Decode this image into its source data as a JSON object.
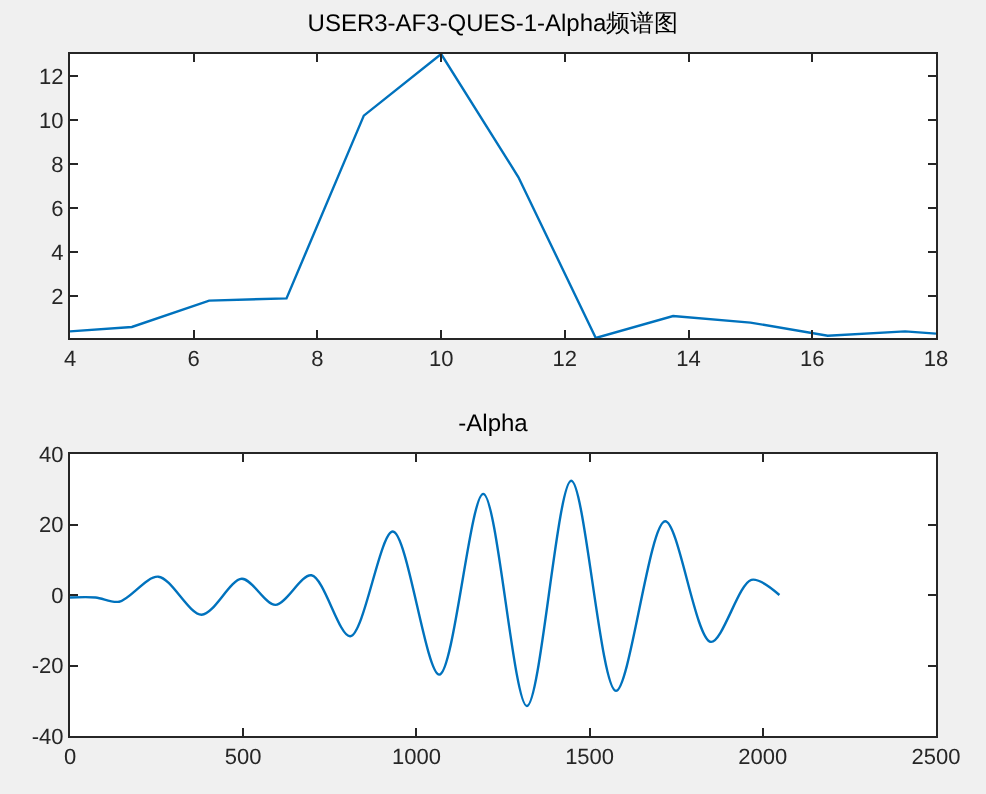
{
  "chart_data": [
    {
      "type": "line",
      "title": "USER3-AF3-QUES-1-Alpha频谱图",
      "x": [
        4,
        5,
        6.25,
        7.5,
        8.75,
        10,
        11.25,
        12.5,
        13.75,
        15,
        16.25,
        17.5,
        18
      ],
      "series": [
        {
          "color": "#0072bd",
          "values": [
            0.4,
            0.6,
            1.8,
            1.9,
            10.2,
            13,
            7.4,
            0.1,
            1.1,
            0.8,
            0.2,
            0.4,
            0.3
          ]
        }
      ],
      "xlim": [
        4,
        18
      ],
      "xticks": [
        4,
        6,
        8,
        10,
        12,
        14,
        16,
        18
      ],
      "ylim": [
        0.1,
        13
      ],
      "yticks": [
        2,
        4,
        6,
        8,
        10,
        12
      ]
    },
    {
      "type": "line",
      "title": "-Alpha",
      "x": [
        0,
        74,
        142,
        255,
        380,
        496,
        593,
        697,
        809,
        932,
        1066,
        1193,
        1319,
        1447,
        1576,
        1718,
        1850,
        1967,
        2048
      ],
      "series": [
        {
          "color": "#0072bd",
          "values": [
            -0.7,
            -0.7,
            -1.9,
            5.2,
            -5.6,
            4.6,
            -2.8,
            5.6,
            -11.7,
            18,
            -22.6,
            28.7,
            -31.5,
            32.4,
            -27.2,
            20.9,
            -13.3,
            4.3,
            0
          ]
        }
      ],
      "xlim": [
        0,
        2500
      ],
      "xticks": [
        0,
        500,
        1000,
        1500,
        2000,
        2500
      ],
      "ylim": [
        -40,
        40
      ],
      "yticks": [
        -40,
        -20,
        0,
        20,
        40
      ]
    }
  ]
}
